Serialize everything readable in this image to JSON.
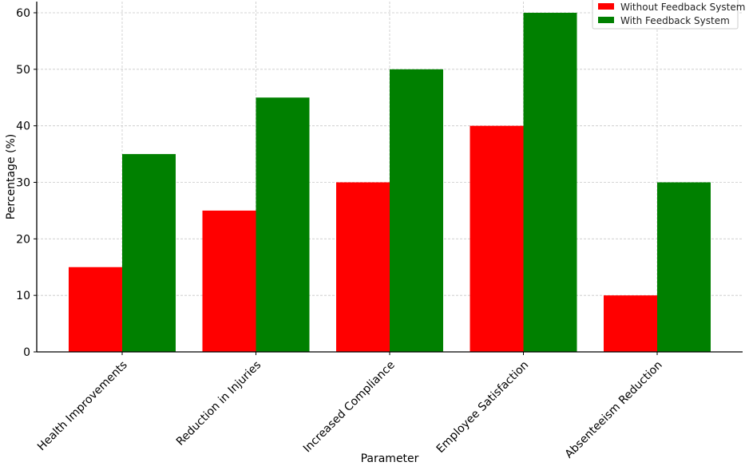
{
  "chart_data": {
    "type": "bar",
    "title": "",
    "xlabel": "Parameter",
    "ylabel": "Percentage (%)",
    "categories": [
      "Health Improvements",
      "Reduction in Injuries",
      "Increased Compliance",
      "Employee Satisfaction",
      "Absenteeism Reduction"
    ],
    "series": [
      {
        "name": "Without Feedback System",
        "color": "#ff0000",
        "values": [
          15,
          25,
          30,
          40,
          10
        ]
      },
      {
        "name": "With Feedback System",
        "color": "#008000",
        "values": [
          35,
          45,
          50,
          60,
          30
        ]
      }
    ],
    "ylim": [
      0,
      60
    ],
    "yticks": [
      0,
      10,
      20,
      30,
      40,
      50,
      60
    ],
    "grid": true,
    "legend_position": "top-right"
  }
}
